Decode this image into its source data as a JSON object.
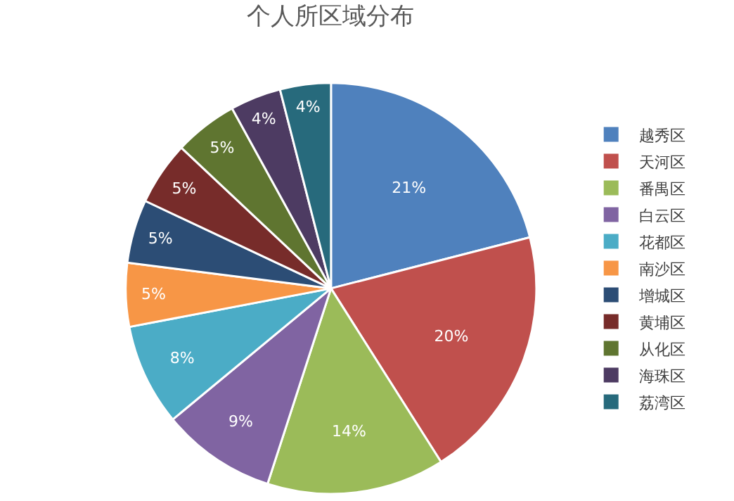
{
  "chart_data": {
    "type": "pie",
    "title": "个人所区域分布",
    "categories": [
      "越秀区",
      "天河区",
      "番禺区",
      "白云区",
      "花都区",
      "南沙区",
      "增城区",
      "黄埔区",
      "从化区",
      "海珠区",
      "荔湾区"
    ],
    "values": [
      21,
      20,
      14,
      9,
      8,
      5,
      5,
      5,
      5,
      4,
      4
    ],
    "value_labels": [
      "21%",
      "20%",
      "14%",
      "9%",
      "8%",
      "5%",
      "5%",
      "5%",
      "5%",
      "4%",
      "4%"
    ],
    "colors": [
      "#4f81bd",
      "#c0504d",
      "#9bbb59",
      "#8064a2",
      "#4bacc6",
      "#f79646",
      "#2c4d75",
      "#772c2a",
      "#5f7530",
      "#4d3b62",
      "#276a7c"
    ],
    "legend": "right"
  }
}
